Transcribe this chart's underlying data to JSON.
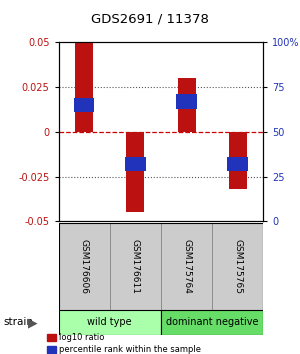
{
  "title": "GDS2691 / 11378",
  "samples": [
    "GSM176606",
    "GSM176611",
    "GSM175764",
    "GSM175765"
  ],
  "log10_ratios": [
    0.05,
    -0.045,
    0.03,
    -0.032
  ],
  "percentile_ranks": [
    0.015,
    -0.018,
    0.017,
    -0.018
  ],
  "ylim": [
    -0.05,
    0.05
  ],
  "yticks_left": [
    -0.05,
    -0.025,
    0,
    0.025,
    0.05
  ],
  "yticks_right": [
    0,
    25,
    50,
    75,
    100
  ],
  "bar_color": "#bb1111",
  "blue_color": "#2233bb",
  "zero_line_color": "#cc0000",
  "dotted_line_color": "#555555",
  "groups": [
    {
      "label": "wild type",
      "indices": [
        0,
        1
      ],
      "color": "#aaffaa"
    },
    {
      "label": "dominant negative",
      "indices": [
        2,
        3
      ],
      "color": "#66dd66"
    }
  ],
  "group_label": "strain",
  "legend_items": [
    {
      "color": "#bb1111",
      "label": "log10 ratio"
    },
    {
      "color": "#2233bb",
      "label": "percentile rank within the sample"
    }
  ],
  "bar_width": 0.35
}
